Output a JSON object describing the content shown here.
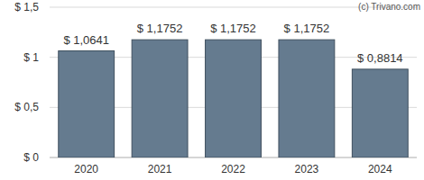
{
  "chart_data": {
    "type": "bar",
    "categories": [
      "2020",
      "2021",
      "2022",
      "2023",
      "2024"
    ],
    "values": [
      1.0641,
      1.1752,
      1.1752,
      1.1752,
      0.8814
    ],
    "value_labels": [
      "$ 1,0641",
      "$ 1,1752",
      "$ 1,1752",
      "$ 1,1752",
      "$ 0,8814"
    ],
    "color": "#657b8f",
    "ylim": [
      0,
      1.5
    ],
    "yticks": [
      {
        "value": 0,
        "label": "$ 0"
      },
      {
        "value": 0.5,
        "label": "$ 0,5"
      },
      {
        "value": 1,
        "label": "$ 1"
      },
      {
        "value": 1.5,
        "label": "$ 1,5"
      }
    ],
    "grid": true,
    "data_labels": true,
    "annotations": [
      "(c) Trivano.com"
    ]
  }
}
